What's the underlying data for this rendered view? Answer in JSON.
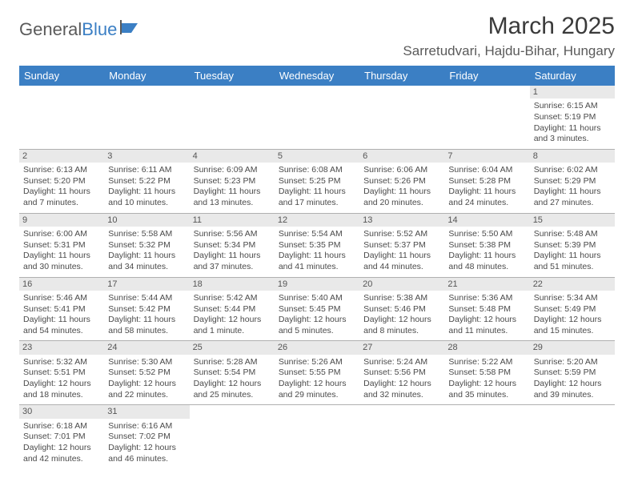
{
  "logo": {
    "text1": "General",
    "text2": "Blue"
  },
  "title": "March 2025",
  "location": "Sarretudvari, Hajdu-Bihar, Hungary",
  "colors": {
    "header_bg": "#3b7fc4",
    "header_fg": "#ffffff",
    "daynum_bg": "#e9e9e9",
    "border": "#b0b0b0",
    "text": "#4a4a4a"
  },
  "weekdays": [
    "Sunday",
    "Monday",
    "Tuesday",
    "Wednesday",
    "Thursday",
    "Friday",
    "Saturday"
  ],
  "weeks": [
    [
      {
        "day": "",
        "sunrise": "",
        "sunset": "",
        "daylight": ""
      },
      {
        "day": "",
        "sunrise": "",
        "sunset": "",
        "daylight": ""
      },
      {
        "day": "",
        "sunrise": "",
        "sunset": "",
        "daylight": ""
      },
      {
        "day": "",
        "sunrise": "",
        "sunset": "",
        "daylight": ""
      },
      {
        "day": "",
        "sunrise": "",
        "sunset": "",
        "daylight": ""
      },
      {
        "day": "",
        "sunrise": "",
        "sunset": "",
        "daylight": ""
      },
      {
        "day": "1",
        "sunrise": "Sunrise: 6:15 AM",
        "sunset": "Sunset: 5:19 PM",
        "daylight": "Daylight: 11 hours and 3 minutes."
      }
    ],
    [
      {
        "day": "2",
        "sunrise": "Sunrise: 6:13 AM",
        "sunset": "Sunset: 5:20 PM",
        "daylight": "Daylight: 11 hours and 7 minutes."
      },
      {
        "day": "3",
        "sunrise": "Sunrise: 6:11 AM",
        "sunset": "Sunset: 5:22 PM",
        "daylight": "Daylight: 11 hours and 10 minutes."
      },
      {
        "day": "4",
        "sunrise": "Sunrise: 6:09 AM",
        "sunset": "Sunset: 5:23 PM",
        "daylight": "Daylight: 11 hours and 13 minutes."
      },
      {
        "day": "5",
        "sunrise": "Sunrise: 6:08 AM",
        "sunset": "Sunset: 5:25 PM",
        "daylight": "Daylight: 11 hours and 17 minutes."
      },
      {
        "day": "6",
        "sunrise": "Sunrise: 6:06 AM",
        "sunset": "Sunset: 5:26 PM",
        "daylight": "Daylight: 11 hours and 20 minutes."
      },
      {
        "day": "7",
        "sunrise": "Sunrise: 6:04 AM",
        "sunset": "Sunset: 5:28 PM",
        "daylight": "Daylight: 11 hours and 24 minutes."
      },
      {
        "day": "8",
        "sunrise": "Sunrise: 6:02 AM",
        "sunset": "Sunset: 5:29 PM",
        "daylight": "Daylight: 11 hours and 27 minutes."
      }
    ],
    [
      {
        "day": "9",
        "sunrise": "Sunrise: 6:00 AM",
        "sunset": "Sunset: 5:31 PM",
        "daylight": "Daylight: 11 hours and 30 minutes."
      },
      {
        "day": "10",
        "sunrise": "Sunrise: 5:58 AM",
        "sunset": "Sunset: 5:32 PM",
        "daylight": "Daylight: 11 hours and 34 minutes."
      },
      {
        "day": "11",
        "sunrise": "Sunrise: 5:56 AM",
        "sunset": "Sunset: 5:34 PM",
        "daylight": "Daylight: 11 hours and 37 minutes."
      },
      {
        "day": "12",
        "sunrise": "Sunrise: 5:54 AM",
        "sunset": "Sunset: 5:35 PM",
        "daylight": "Daylight: 11 hours and 41 minutes."
      },
      {
        "day": "13",
        "sunrise": "Sunrise: 5:52 AM",
        "sunset": "Sunset: 5:37 PM",
        "daylight": "Daylight: 11 hours and 44 minutes."
      },
      {
        "day": "14",
        "sunrise": "Sunrise: 5:50 AM",
        "sunset": "Sunset: 5:38 PM",
        "daylight": "Daylight: 11 hours and 48 minutes."
      },
      {
        "day": "15",
        "sunrise": "Sunrise: 5:48 AM",
        "sunset": "Sunset: 5:39 PM",
        "daylight": "Daylight: 11 hours and 51 minutes."
      }
    ],
    [
      {
        "day": "16",
        "sunrise": "Sunrise: 5:46 AM",
        "sunset": "Sunset: 5:41 PM",
        "daylight": "Daylight: 11 hours and 54 minutes."
      },
      {
        "day": "17",
        "sunrise": "Sunrise: 5:44 AM",
        "sunset": "Sunset: 5:42 PM",
        "daylight": "Daylight: 11 hours and 58 minutes."
      },
      {
        "day": "18",
        "sunrise": "Sunrise: 5:42 AM",
        "sunset": "Sunset: 5:44 PM",
        "daylight": "Daylight: 12 hours and 1 minute."
      },
      {
        "day": "19",
        "sunrise": "Sunrise: 5:40 AM",
        "sunset": "Sunset: 5:45 PM",
        "daylight": "Daylight: 12 hours and 5 minutes."
      },
      {
        "day": "20",
        "sunrise": "Sunrise: 5:38 AM",
        "sunset": "Sunset: 5:46 PM",
        "daylight": "Daylight: 12 hours and 8 minutes."
      },
      {
        "day": "21",
        "sunrise": "Sunrise: 5:36 AM",
        "sunset": "Sunset: 5:48 PM",
        "daylight": "Daylight: 12 hours and 11 minutes."
      },
      {
        "day": "22",
        "sunrise": "Sunrise: 5:34 AM",
        "sunset": "Sunset: 5:49 PM",
        "daylight": "Daylight: 12 hours and 15 minutes."
      }
    ],
    [
      {
        "day": "23",
        "sunrise": "Sunrise: 5:32 AM",
        "sunset": "Sunset: 5:51 PM",
        "daylight": "Daylight: 12 hours and 18 minutes."
      },
      {
        "day": "24",
        "sunrise": "Sunrise: 5:30 AM",
        "sunset": "Sunset: 5:52 PM",
        "daylight": "Daylight: 12 hours and 22 minutes."
      },
      {
        "day": "25",
        "sunrise": "Sunrise: 5:28 AM",
        "sunset": "Sunset: 5:54 PM",
        "daylight": "Daylight: 12 hours and 25 minutes."
      },
      {
        "day": "26",
        "sunrise": "Sunrise: 5:26 AM",
        "sunset": "Sunset: 5:55 PM",
        "daylight": "Daylight: 12 hours and 29 minutes."
      },
      {
        "day": "27",
        "sunrise": "Sunrise: 5:24 AM",
        "sunset": "Sunset: 5:56 PM",
        "daylight": "Daylight: 12 hours and 32 minutes."
      },
      {
        "day": "28",
        "sunrise": "Sunrise: 5:22 AM",
        "sunset": "Sunset: 5:58 PM",
        "daylight": "Daylight: 12 hours and 35 minutes."
      },
      {
        "day": "29",
        "sunrise": "Sunrise: 5:20 AM",
        "sunset": "Sunset: 5:59 PM",
        "daylight": "Daylight: 12 hours and 39 minutes."
      }
    ],
    [
      {
        "day": "30",
        "sunrise": "Sunrise: 6:18 AM",
        "sunset": "Sunset: 7:01 PM",
        "daylight": "Daylight: 12 hours and 42 minutes."
      },
      {
        "day": "31",
        "sunrise": "Sunrise: 6:16 AM",
        "sunset": "Sunset: 7:02 PM",
        "daylight": "Daylight: 12 hours and 46 minutes."
      },
      {
        "day": "",
        "sunrise": "",
        "sunset": "",
        "daylight": ""
      },
      {
        "day": "",
        "sunrise": "",
        "sunset": "",
        "daylight": ""
      },
      {
        "day": "",
        "sunrise": "",
        "sunset": "",
        "daylight": ""
      },
      {
        "day": "",
        "sunrise": "",
        "sunset": "",
        "daylight": ""
      },
      {
        "day": "",
        "sunrise": "",
        "sunset": "",
        "daylight": ""
      }
    ]
  ]
}
